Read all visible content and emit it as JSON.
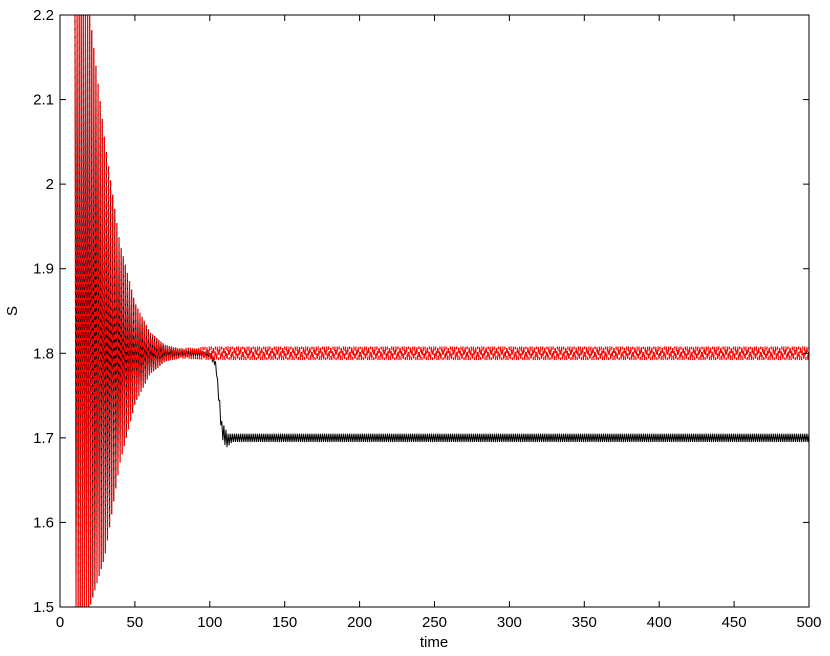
{
  "chart_data": {
    "type": "line",
    "title": "",
    "xlabel": "time",
    "ylabel": "S",
    "xlim": [
      0,
      500
    ],
    "ylim": [
      1.5,
      2.2
    ],
    "xticks": [
      0,
      50,
      100,
      150,
      200,
      250,
      300,
      350,
      400,
      450,
      500
    ],
    "yticks": [
      1.5,
      1.6,
      1.7,
      1.8,
      1.9,
      2.0,
      2.1,
      2.2
    ],
    "xtick_labels": [
      "0",
      "50",
      "100",
      "150",
      "200",
      "250",
      "300",
      "350",
      "400",
      "450",
      "500"
    ],
    "ytick_labels": [
      "1.5",
      "1.6",
      "1.7",
      "1.8",
      "1.9",
      "2",
      "2.1",
      "2.2"
    ],
    "grid": false,
    "legend": "none",
    "series": [
      {
        "color": "#000000",
        "style": "solid-oscillating",
        "envelope_upper": [
          [
            10,
            2.2
          ],
          [
            20,
            2.2
          ],
          [
            30,
            2.05
          ],
          [
            40,
            1.93
          ],
          [
            50,
            1.86
          ],
          [
            60,
            1.825
          ],
          [
            70,
            1.81
          ],
          [
            80,
            1.805
          ],
          [
            95,
            1.803
          ],
          [
            100,
            1.8
          ],
          [
            104,
            1.79
          ],
          [
            108,
            1.72
          ],
          [
            112,
            1.705
          ],
          [
            150,
            1.705
          ],
          [
            500,
            1.705
          ]
        ],
        "envelope_lower": [
          [
            10,
            1.5
          ],
          [
            20,
            1.5
          ],
          [
            30,
            1.56
          ],
          [
            40,
            1.67
          ],
          [
            50,
            1.74
          ],
          [
            60,
            1.775
          ],
          [
            70,
            1.79
          ],
          [
            80,
            1.795
          ],
          [
            95,
            1.797
          ],
          [
            100,
            1.795
          ],
          [
            104,
            1.785
          ],
          [
            108,
            1.7
          ],
          [
            111,
            1.688
          ],
          [
            115,
            1.695
          ],
          [
            150,
            1.695
          ],
          [
            500,
            1.695
          ]
        ]
      },
      {
        "color": "#ff0000",
        "style": "dashed-oscillating",
        "envelope_upper": [
          [
            10,
            2.2
          ],
          [
            20,
            2.2
          ],
          [
            30,
            2.05
          ],
          [
            40,
            1.93
          ],
          [
            50,
            1.86
          ],
          [
            60,
            1.825
          ],
          [
            70,
            1.81
          ],
          [
            80,
            1.806
          ],
          [
            100,
            1.808
          ],
          [
            500,
            1.808
          ]
        ],
        "envelope_lower": [
          [
            10,
            1.5
          ],
          [
            20,
            1.5
          ],
          [
            30,
            1.56
          ],
          [
            40,
            1.67
          ],
          [
            50,
            1.74
          ],
          [
            60,
            1.775
          ],
          [
            70,
            1.79
          ],
          [
            80,
            1.794
          ],
          [
            100,
            1.792
          ],
          [
            500,
            1.792
          ]
        ]
      }
    ]
  }
}
